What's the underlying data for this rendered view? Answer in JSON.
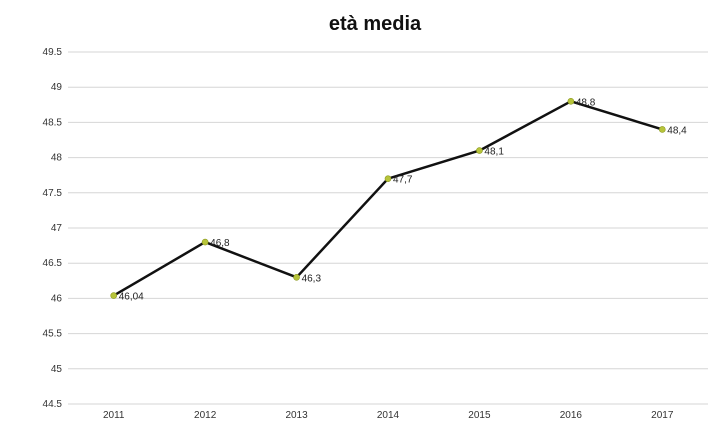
{
  "chart_data": {
    "type": "line",
    "title": "età media",
    "xlabel": "",
    "ylabel": "",
    "categories": [
      "2011",
      "2012",
      "2013",
      "2014",
      "2015",
      "2016",
      "2017"
    ],
    "series": [
      {
        "values": [
          46.04,
          46.8,
          46.3,
          47.7,
          48.1,
          48.8,
          48.4
        ],
        "labels": [
          "46,04",
          "46,8",
          "46,3",
          "47,7",
          "48,1",
          "48,8",
          "48,4"
        ],
        "line_color": "#111111",
        "marker_color": "#b7c43a"
      }
    ],
    "ylim": [
      44.5,
      49.5
    ],
    "y_ticks": [
      44.5,
      45,
      45.5,
      46,
      46.5,
      47,
      47.5,
      48,
      48.5,
      49,
      49.5
    ],
    "y_tick_labels": [
      "44.5",
      "45",
      "45.5",
      "46",
      "46.5",
      "47",
      "47.5",
      "48",
      "48.5",
      "49",
      "49.5"
    ],
    "grid": true,
    "legend": "none"
  }
}
